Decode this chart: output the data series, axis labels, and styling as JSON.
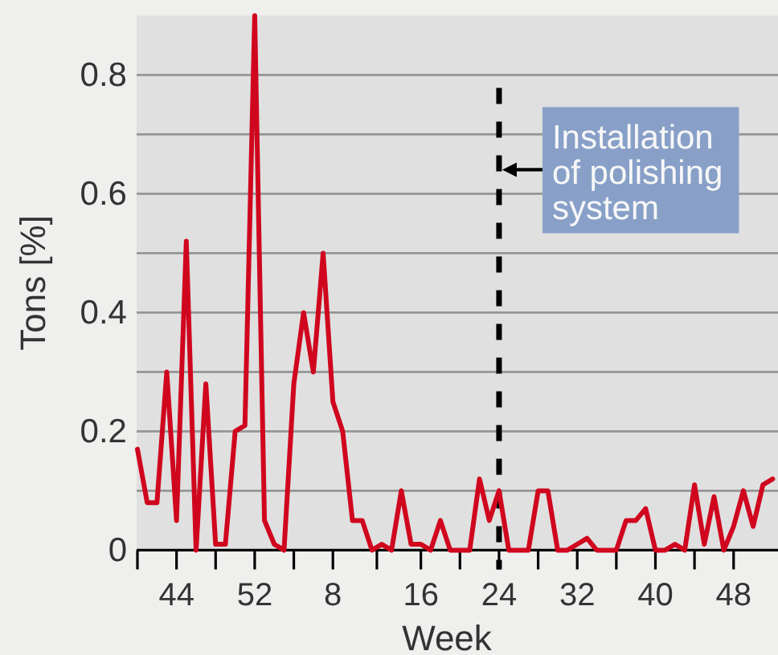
{
  "chart_data": {
    "type": "line",
    "xlabel": "Week",
    "ylabel": "Tons [%]",
    "categories": [
      null,
      null,
      null,
      null,
      "44",
      null,
      null,
      null,
      null,
      null,
      null,
      null,
      "52",
      null,
      null,
      null,
      null,
      null,
      null,
      null,
      "8",
      null,
      null,
      null,
      null,
      null,
      null,
      null,
      null,
      "16",
      null,
      null,
      null,
      null,
      null,
      null,
      null,
      "24",
      null,
      null,
      null,
      null,
      null,
      null,
      null,
      "32",
      null,
      null,
      null,
      null,
      null,
      null,
      null,
      "40",
      null,
      null,
      null,
      null,
      null,
      null,
      null,
      "48",
      null,
      null,
      null,
      null
    ],
    "values": [
      0.17,
      0.08,
      0.08,
      0.3,
      0.05,
      0.52,
      0,
      0.28,
      0.01,
      0.01,
      0.2,
      0.21,
      0.9,
      0.05,
      0.01,
      0,
      0.28,
      0.4,
      0.3,
      0.5,
      0.25,
      0.2,
      0.05,
      0.05,
      0,
      0.01,
      0,
      0.1,
      0.01,
      0.01,
      0,
      0.05,
      0,
      0,
      0,
      0.12,
      0.05,
      0.1,
      0,
      0,
      0,
      0.1,
      0.1,
      0,
      0,
      0.01,
      0.02,
      0,
      0,
      0,
      0.05,
      0.05,
      0.07,
      0,
      0,
      0.01,
      0,
      0.11,
      0.01,
      0.09,
      0,
      0.04,
      0.1,
      0.04,
      0.11,
      0.12
    ],
    "color": "#d0061e",
    "ylim": [
      0,
      0.9
    ],
    "yticks": [
      0,
      {
        "value": 0.1,
        "label": null
      },
      0.2,
      {
        "value": 0.3,
        "label": null
      },
      0.4,
      {
        "value": 0.5,
        "label": null
      },
      0.6,
      {
        "value": 0.7,
        "label": null
      },
      0.8
    ],
    "grid": "y",
    "ref_lines": [
      {
        "axis": "x",
        "value": "24",
        "label": "Installation of polishing system",
        "color": "#000000",
        "line_style": "dashed"
      }
    ]
  }
}
